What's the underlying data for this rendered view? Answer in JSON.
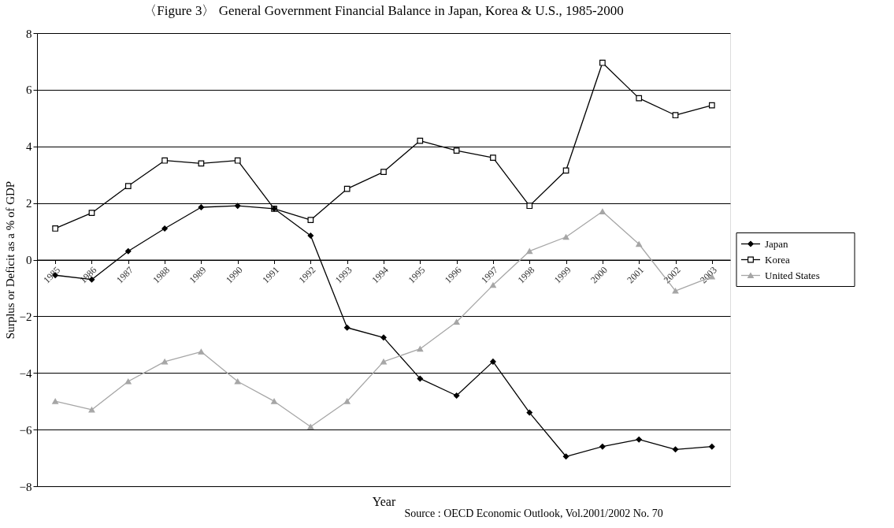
{
  "chart_data": {
    "type": "line",
    "title": "〈Figure 3〉 General Government Financial Balance in Japan, Korea & U.S., 1985-2000",
    "xlabel": "Year",
    "ylabel": "Surplus or Deficit as a % of GDP",
    "categories": [
      "1985",
      "1986",
      "1987",
      "1988",
      "1989",
      "1990",
      "1991",
      "1992",
      "1993",
      "1994",
      "1995",
      "1996",
      "1997",
      "1998",
      "1999",
      "2000",
      "2001",
      "2002",
      "2003"
    ],
    "series": [
      {
        "name": "Japan",
        "color": "#000000",
        "marker": "diamond",
        "values": [
          -0.55,
          -0.7,
          0.3,
          1.1,
          1.85,
          1.9,
          1.8,
          0.85,
          -2.4,
          -2.75,
          -4.2,
          -4.8,
          -3.6,
          -5.4,
          -6.95,
          -6.6,
          -6.35,
          -6.7,
          -6.6
        ]
      },
      {
        "name": "Korea",
        "color": "#000000",
        "marker": "square",
        "values": [
          1.1,
          1.65,
          2.6,
          3.5,
          3.4,
          3.5,
          1.8,
          1.4,
          2.5,
          3.1,
          4.2,
          3.85,
          3.6,
          1.9,
          3.15,
          6.95,
          5.7,
          5.1,
          5.45
        ]
      },
      {
        "name": "United States",
        "color": "#a6a6a6",
        "marker": "triangle",
        "values": [
          -5.0,
          -5.3,
          -4.3,
          -3.6,
          -3.25,
          -4.3,
          -5.0,
          -5.9,
          -5.0,
          -3.6,
          -3.15,
          -2.2,
          -0.9,
          0.3,
          0.8,
          1.7,
          0.55,
          -1.1,
          -0.6
        ]
      }
    ],
    "ylim": [
      -8,
      8
    ],
    "yticks": [
      -8,
      -6,
      -4,
      -2,
      0,
      2,
      4,
      6,
      8
    ],
    "grid": "y",
    "legend": "right",
    "annotations": [
      "Source : OECD Economic Outlook, Vol.2001/2002 No. 70"
    ]
  }
}
